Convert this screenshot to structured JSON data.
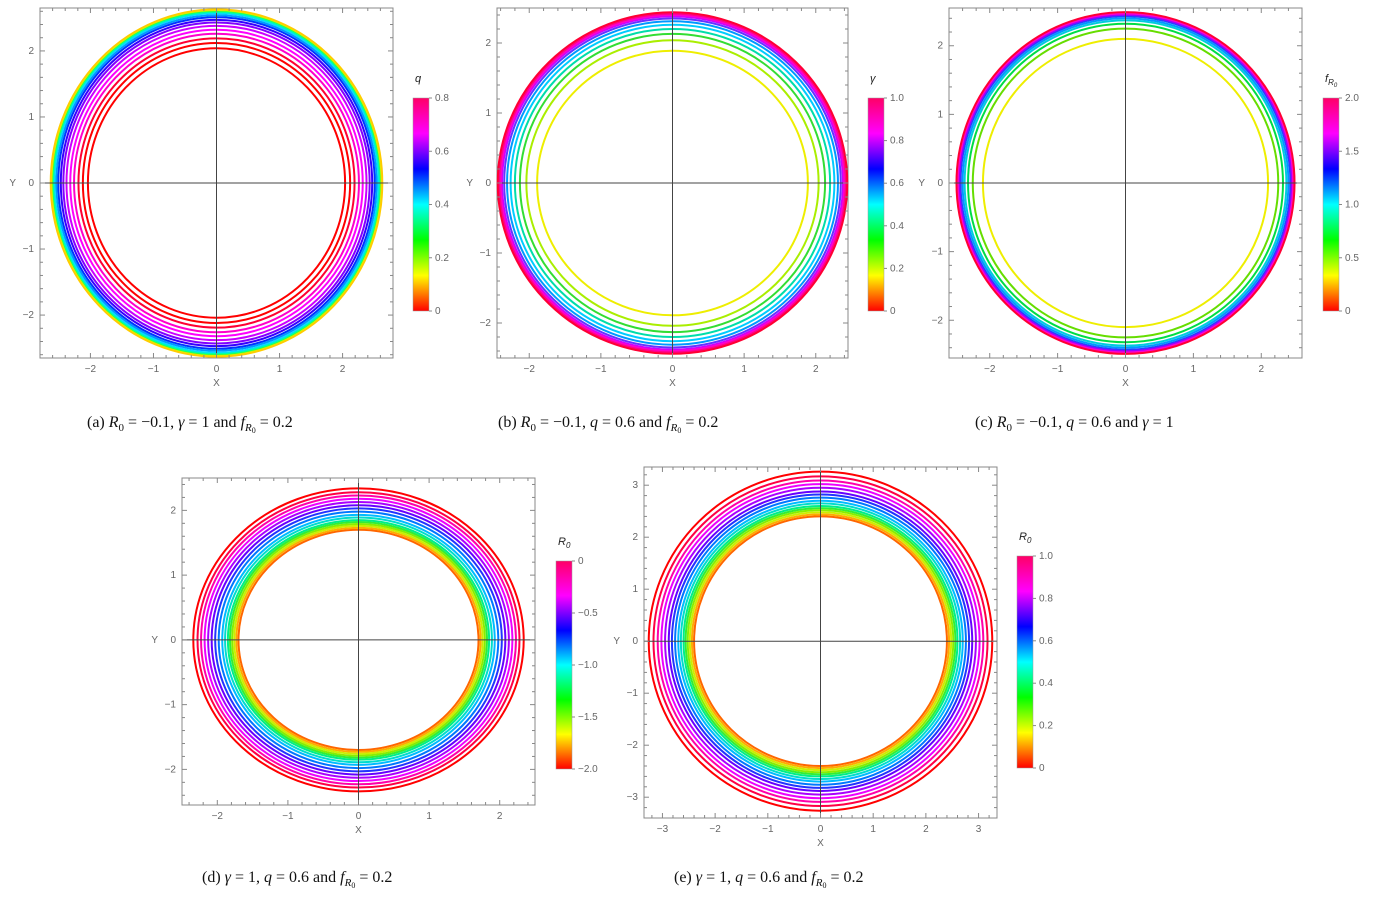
{
  "chart_data": [
    {
      "type": "line",
      "panel": "a",
      "plot_kind": "parametric circles colored by parameter",
      "xlabel": "X",
      "ylabel": "Y",
      "xlim": [
        -2.8,
        2.8
      ],
      "ylim": [
        -2.65,
        2.65
      ],
      "xticks": [
        -2,
        -1,
        0,
        1,
        2
      ],
      "yticks": [
        -2,
        -1,
        0,
        1,
        2
      ],
      "xtick_labels": [
        "−2",
        "−1",
        "0",
        "1",
        "2"
      ],
      "ytick_labels": [
        "−2",
        "−1",
        "0",
        "1",
        "2"
      ],
      "colorbar": {
        "label": "q",
        "min": 0,
        "max": 0.8,
        "ticks": [
          "0",
          "0.2",
          "0.4",
          "0.6",
          "0.8"
        ]
      },
      "color_stops": [
        "#ff0000",
        "#ffff00",
        "#00ff00",
        "#00ffff",
        "#0000ff",
        "#ff00ff",
        "#ff0066"
      ],
      "series": [
        {
          "param": 0.0,
          "radius": 2.04,
          "color": "#ff0000"
        },
        {
          "param": 0.0,
          "radius": 2.12,
          "color": "#ff0000"
        },
        {
          "param": 0.0,
          "radius": 2.19,
          "color": "#ff0033"
        },
        {
          "param": 0.8,
          "radius": 2.26,
          "color": "#ff00cc"
        },
        {
          "param": 0.77,
          "radius": 2.32,
          "color": "#ff00ff"
        },
        {
          "param": 0.74,
          "radius": 2.38,
          "color": "#cc00ff"
        },
        {
          "param": 0.7,
          "radius": 2.43,
          "color": "#8000ff"
        },
        {
          "param": 0.65,
          "radius": 2.47,
          "color": "#3300ff"
        },
        {
          "param": 0.6,
          "radius": 2.51,
          "color": "#0033ff"
        },
        {
          "param": 0.55,
          "radius": 2.54,
          "color": "#0099ff"
        },
        {
          "param": 0.5,
          "radius": 2.57,
          "color": "#00ddff"
        },
        {
          "param": 0.42,
          "radius": 2.59,
          "color": "#00ffaa"
        },
        {
          "param": 0.3,
          "radius": 2.61,
          "color": "#33ff33"
        },
        {
          "param": 0.15,
          "radius": 2.62,
          "color": "#ccff00"
        },
        {
          "param": 0.05,
          "radius": 2.63,
          "color": "#ffcc00"
        }
      ],
      "caption_prefix": "(a)",
      "caption_vals": [
        "−0.1",
        "1",
        "0.2"
      ]
    },
    {
      "type": "line",
      "panel": "b",
      "plot_kind": "parametric circles colored by parameter",
      "xlabel": "X",
      "ylabel": "Y",
      "xlim": [
        -2.45,
        2.45
      ],
      "ylim": [
        -2.5,
        2.5
      ],
      "xticks": [
        -2,
        -1,
        0,
        1,
        2
      ],
      "yticks": [
        -2,
        -1,
        0,
        1,
        2
      ],
      "xtick_labels": [
        "−2",
        "−1",
        "0",
        "1",
        "2"
      ],
      "ytick_labels": [
        "−2",
        "−1",
        "0",
        "1",
        "2"
      ],
      "colorbar": {
        "label": "γ",
        "min": 0,
        "max": 1.0,
        "ticks": [
          "0",
          "0.2",
          "0.4",
          "0.6",
          "0.8",
          "1.0"
        ]
      },
      "color_stops": [
        "#ff0000",
        "#ffff00",
        "#00ff00",
        "#00ffff",
        "#0000ff",
        "#ff00ff",
        "#ff0066"
      ],
      "series": [
        {
          "param": 0.1,
          "radius": 1.89,
          "color": "#eeee00"
        },
        {
          "param": 0.25,
          "radius": 2.04,
          "color": "#aaee00"
        },
        {
          "param": 0.35,
          "radius": 2.13,
          "color": "#33dd33"
        },
        {
          "param": 0.45,
          "radius": 2.2,
          "color": "#00ddaa"
        },
        {
          "param": 0.55,
          "radius": 2.26,
          "color": "#00ccff"
        },
        {
          "param": 0.62,
          "radius": 2.31,
          "color": "#0099ff"
        },
        {
          "param": 0.7,
          "radius": 2.35,
          "color": "#6633ff"
        },
        {
          "param": 0.78,
          "radius": 2.38,
          "color": "#cc00ff"
        },
        {
          "param": 0.85,
          "radius": 2.4,
          "color": "#ff00cc"
        },
        {
          "param": 0.92,
          "radius": 2.42,
          "color": "#ff0088"
        },
        {
          "param": 1.0,
          "radius": 2.44,
          "color": "#ff0033"
        }
      ],
      "caption_prefix": "(b)",
      "caption_vals": [
        "−0.1",
        "0.6",
        "0.2"
      ]
    },
    {
      "type": "line",
      "panel": "c",
      "plot_kind": "parametric circles colored by parameter",
      "xlabel": "X",
      "ylabel": "Y",
      "xlim": [
        -2.6,
        2.6
      ],
      "ylim": [
        -2.55,
        2.55
      ],
      "xticks": [
        -2,
        -1,
        0,
        1,
        2
      ],
      "yticks": [
        -2,
        -1,
        0,
        1,
        2
      ],
      "xtick_labels": [
        "−2",
        "−1",
        "0",
        "1",
        "2"
      ],
      "ytick_labels": [
        "−2",
        "−1",
        "0",
        "1",
        "2"
      ],
      "colorbar": {
        "label": "f",
        "label_sub": "R",
        "label_subsub": "0",
        "min": 0,
        "max": 2.0,
        "ticks": [
          "0",
          "0.5",
          "1.0",
          "1.5",
          "2.0"
        ]
      },
      "color_stops": [
        "#ff0000",
        "#ffff00",
        "#00ff00",
        "#00ffff",
        "#0000ff",
        "#ff00ff",
        "#ff0066"
      ],
      "series": [
        {
          "param": 0.3,
          "radius": 2.1,
          "color": "#eeee00"
        },
        {
          "param": 0.6,
          "radius": 2.25,
          "color": "#66dd00"
        },
        {
          "param": 0.8,
          "radius": 2.32,
          "color": "#00dd44"
        },
        {
          "param": 1.0,
          "radius": 2.37,
          "color": "#00ccdd"
        },
        {
          "param": 1.2,
          "radius": 2.4,
          "color": "#0099ff"
        },
        {
          "param": 1.4,
          "radius": 2.43,
          "color": "#2244ff"
        },
        {
          "param": 1.6,
          "radius": 2.45,
          "color": "#9900ff"
        },
        {
          "param": 1.8,
          "radius": 2.47,
          "color": "#ff00cc"
        },
        {
          "param": 2.0,
          "radius": 2.49,
          "color": "#ff0033"
        }
      ],
      "caption_prefix": "(c)",
      "caption_vals": [
        "−0.1",
        "0.6",
        "1"
      ]
    },
    {
      "type": "line",
      "panel": "d",
      "plot_kind": "parametric circles colored by parameter",
      "xlabel": "X",
      "ylabel": "Y",
      "xlim": [
        -2.5,
        2.5
      ],
      "ylim": [
        -2.55,
        2.5
      ],
      "xticks": [
        -2,
        -1,
        0,
        1,
        2
      ],
      "yticks": [
        -2,
        -1,
        0,
        1,
        2
      ],
      "xtick_labels": [
        "−2",
        "−1",
        "0",
        "1",
        "2"
      ],
      "ytick_labels": [
        "−2",
        "−1",
        "0",
        "1",
        "2"
      ],
      "colorbar": {
        "label": "R",
        "label_sub": "0",
        "min": -2.0,
        "max": 0,
        "ticks": [
          "−2.0",
          "−1.5",
          "−1.0",
          "−0.5",
          "0"
        ]
      },
      "color_stops": [
        "#ff0000",
        "#ffff00",
        "#00ff00",
        "#00ffff",
        "#0000ff",
        "#ff00ff",
        "#ff0066"
      ],
      "series": [
        {
          "param": -2.0,
          "radius": 1.7,
          "color": "#ff6600"
        },
        {
          "param": -1.9,
          "radius": 1.73,
          "color": "#ffaa00"
        },
        {
          "param": -1.8,
          "radius": 1.76,
          "color": "#ccee00"
        },
        {
          "param": -1.65,
          "radius": 1.79,
          "color": "#88ee00"
        },
        {
          "param": -1.5,
          "radius": 1.82,
          "color": "#33ee33"
        },
        {
          "param": -1.35,
          "radius": 1.85,
          "color": "#00ee88"
        },
        {
          "param": -1.2,
          "radius": 1.89,
          "color": "#00ddcc"
        },
        {
          "param": -1.05,
          "radius": 1.93,
          "color": "#00bbff"
        },
        {
          "param": -0.9,
          "radius": 1.98,
          "color": "#0077ff"
        },
        {
          "param": -0.75,
          "radius": 2.03,
          "color": "#2233ff"
        },
        {
          "param": -0.6,
          "radius": 2.08,
          "color": "#6600ff"
        },
        {
          "param": -0.45,
          "radius": 2.13,
          "color": "#aa00ff"
        },
        {
          "param": -0.3,
          "radius": 2.18,
          "color": "#ee00ff"
        },
        {
          "param": -0.2,
          "radius": 2.23,
          "color": "#ff00aa"
        },
        {
          "param": -0.1,
          "radius": 2.28,
          "color": "#ff0044"
        },
        {
          "param": 0.0,
          "radius": 2.34,
          "color": "#ff0000"
        }
      ],
      "caption_prefix": "(d)",
      "caption_vals": [
        "1",
        "0.6",
        "0.2"
      ]
    },
    {
      "type": "line",
      "panel": "e",
      "plot_kind": "parametric circles colored by parameter",
      "xlabel": "X",
      "ylabel": "Y",
      "xlim": [
        -3.35,
        3.35
      ],
      "ylim": [
        -3.4,
        3.35
      ],
      "xticks": [
        -3,
        -2,
        -1,
        0,
        1,
        2,
        3
      ],
      "yticks": [
        -3,
        -2,
        -1,
        0,
        1,
        2,
        3
      ],
      "xtick_labels": [
        "−3",
        "−2",
        "−1",
        "0",
        "1",
        "2",
        "3"
      ],
      "ytick_labels": [
        "−3",
        "−2",
        "−1",
        "0",
        "1",
        "2",
        "3"
      ],
      "colorbar": {
        "label": "R",
        "label_sub": "0",
        "min": 0,
        "max": 1.0,
        "ticks": [
          "0",
          "0.2",
          "0.4",
          "0.6",
          "0.8",
          "1.0"
        ]
      },
      "color_stops": [
        "#ff0000",
        "#ffff00",
        "#00ff00",
        "#00ffff",
        "#0000ff",
        "#ff00ff",
        "#ff0066"
      ],
      "series": [
        {
          "param": 0.0,
          "radius": 2.4,
          "color": "#ff6600"
        },
        {
          "param": 0.05,
          "radius": 2.44,
          "color": "#ffaa00"
        },
        {
          "param": 0.1,
          "radius": 2.48,
          "color": "#ccee00"
        },
        {
          "param": 0.18,
          "radius": 2.52,
          "color": "#88ee00"
        },
        {
          "param": 0.25,
          "radius": 2.56,
          "color": "#33ee33"
        },
        {
          "param": 0.32,
          "radius": 2.6,
          "color": "#00ee88"
        },
        {
          "param": 0.4,
          "radius": 2.65,
          "color": "#00ddcc"
        },
        {
          "param": 0.48,
          "radius": 2.7,
          "color": "#00bbff"
        },
        {
          "param": 0.55,
          "radius": 2.76,
          "color": "#0077ff"
        },
        {
          "param": 0.62,
          "radius": 2.82,
          "color": "#2233ff"
        },
        {
          "param": 0.7,
          "radius": 2.88,
          "color": "#6600ff"
        },
        {
          "param": 0.77,
          "radius": 2.95,
          "color": "#aa00ff"
        },
        {
          "param": 0.84,
          "radius": 3.02,
          "color": "#ee00ff"
        },
        {
          "param": 0.9,
          "radius": 3.09,
          "color": "#ff00aa"
        },
        {
          "param": 0.95,
          "radius": 3.17,
          "color": "#ff0044"
        },
        {
          "param": 1.0,
          "radius": 3.26,
          "color": "#ff0000"
        }
      ],
      "caption_prefix": "(e)",
      "caption_vals": [
        "1",
        "0.6",
        "0.2"
      ]
    }
  ]
}
